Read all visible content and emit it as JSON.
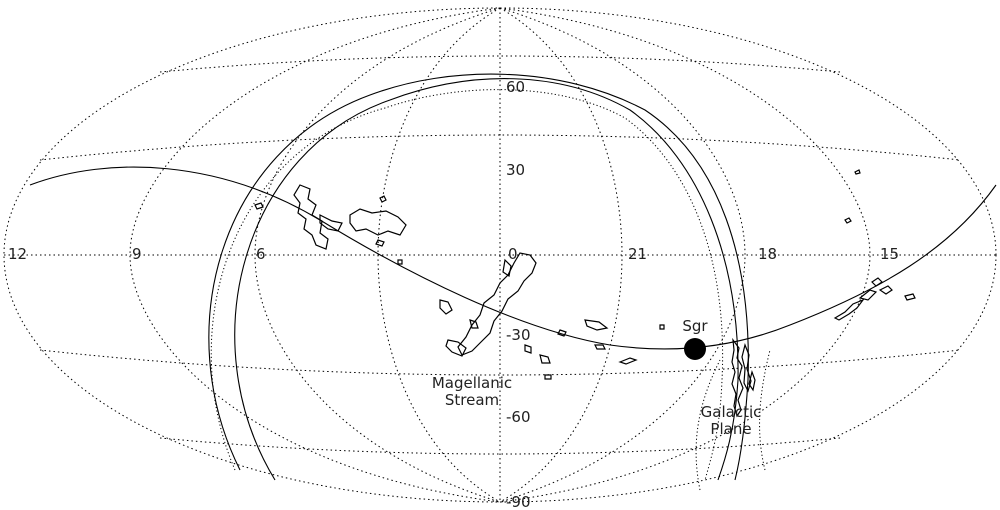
{
  "map": {
    "projection": "Aitoff / Hammer all-sky",
    "ra_labels": [
      "12",
      "9",
      "6",
      "0",
      "21",
      "18",
      "15"
    ],
    "dec_labels": [
      "60",
      "30",
      "-30",
      "-60",
      "-90"
    ],
    "annotations": {
      "magellanic_line1": "Magellanic",
      "magellanic_line2": "Stream",
      "sgr": "Sgr",
      "galactic_line1": "Galactic",
      "galactic_line2": "Plane"
    }
  }
}
